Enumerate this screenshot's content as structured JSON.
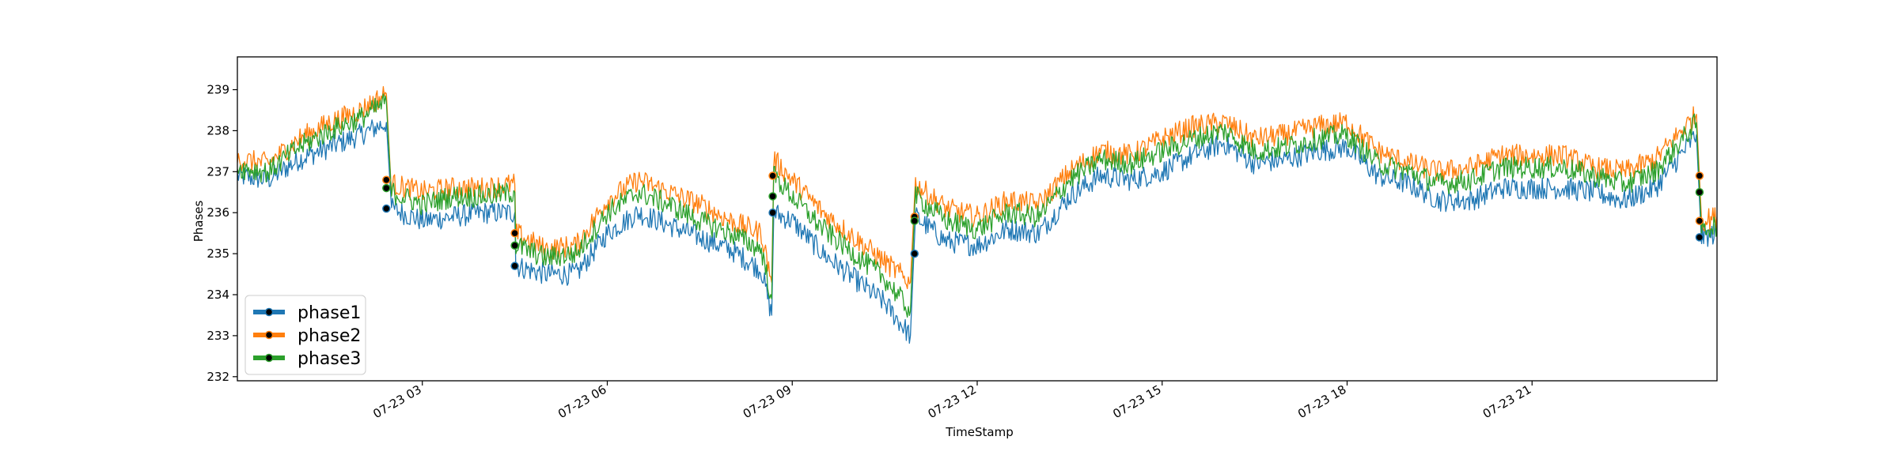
{
  "chart_data": {
    "type": "line",
    "title": "",
    "xlabel": "TimeStamp",
    "ylabel": "Phases",
    "x_range": [
      "07-23 00:00",
      "07-24 00:00"
    ],
    "ylim": [
      231.9,
      239.8
    ],
    "grid": false,
    "legend_position": "lower-left",
    "x_ticks": [
      {
        "t": 3,
        "label": "07-23 03"
      },
      {
        "t": 6,
        "label": "07-23 06"
      },
      {
        "t": 9,
        "label": "07-23 09"
      },
      {
        "t": 12,
        "label": "07-23 12"
      },
      {
        "t": 15,
        "label": "07-23 15"
      },
      {
        "t": 18,
        "label": "07-23 18"
      },
      {
        "t": 21,
        "label": "07-23 21"
      }
    ],
    "y_ticks": [
      232,
      233,
      234,
      235,
      236,
      237,
      238,
      239
    ],
    "series": [
      {
        "name": "phase1",
        "color": "#1f77b4",
        "x": [
          "07-23 00:00",
          "07-23 00:30",
          "07-23 01:00",
          "07-23 01:30",
          "07-23 02:00",
          "07-23 02:25",
          "07-23 02:30",
          "07-23 03:00",
          "07-23 03:30",
          "07-23 04:00",
          "07-23 04:30",
          "07-23 04:31",
          "07-23 05:00",
          "07-23 05:30",
          "07-23 06:00",
          "07-23 06:30",
          "07-23 07:00",
          "07-23 07:30",
          "07-23 08:00",
          "07-23 08:30",
          "07-23 08:40",
          "07-23 08:42",
          "07-23 09:00",
          "07-23 09:30",
          "07-23 10:00",
          "07-23 10:30",
          "07-23 10:55",
          "07-23 11:00",
          "07-23 11:30",
          "07-23 12:00",
          "07-23 12:30",
          "07-23 13:00",
          "07-23 13:30",
          "07-23 14:00",
          "07-23 14:30",
          "07-23 15:00",
          "07-23 15:30",
          "07-23 16:00",
          "07-23 16:30",
          "07-23 17:00",
          "07-23 17:30",
          "07-23 18:00",
          "07-23 18:30",
          "07-23 19:00",
          "07-23 19:30",
          "07-23 20:00",
          "07-23 20:30",
          "07-23 21:00",
          "07-23 21:30",
          "07-23 22:00",
          "07-23 22:30",
          "07-23 23:00",
          "07-23 23:40",
          "07-23 23:45",
          "07-24 00:00"
        ],
        "values": [
          236.9,
          236.8,
          237.3,
          237.6,
          237.9,
          238.2,
          236.1,
          235.8,
          235.9,
          236.0,
          236.0,
          234.7,
          234.5,
          234.5,
          235.5,
          236.0,
          235.7,
          235.4,
          235.1,
          234.6,
          233.5,
          236.0,
          235.8,
          235.0,
          234.4,
          233.8,
          233.0,
          235.9,
          235.3,
          235.2,
          235.6,
          235.5,
          236.4,
          236.9,
          236.8,
          237.0,
          237.4,
          237.7,
          237.2,
          237.3,
          237.5,
          237.6,
          236.9,
          236.7,
          236.3,
          236.3,
          236.6,
          236.6,
          236.6,
          236.5,
          236.3,
          236.6,
          237.9,
          235.4,
          235.5
        ]
      },
      {
        "name": "phase2",
        "color": "#ff7f0e",
        "x": [
          "07-23 00:00",
          "07-23 00:30",
          "07-23 01:00",
          "07-23 01:30",
          "07-23 02:00",
          "07-23 02:25",
          "07-23 02:30",
          "07-23 03:00",
          "07-23 03:30",
          "07-23 04:00",
          "07-23 04:30",
          "07-23 04:31",
          "07-23 05:00",
          "07-23 05:30",
          "07-23 06:00",
          "07-23 06:30",
          "07-23 07:00",
          "07-23 07:30",
          "07-23 08:00",
          "07-23 08:30",
          "07-23 08:40",
          "07-23 08:42",
          "07-23 09:00",
          "07-23 09:30",
          "07-23 10:00",
          "07-23 10:30",
          "07-23 10:55",
          "07-23 11:00",
          "07-23 11:30",
          "07-23 12:00",
          "07-23 12:30",
          "07-23 13:00",
          "07-23 13:30",
          "07-23 14:00",
          "07-23 14:30",
          "07-23 15:00",
          "07-23 15:30",
          "07-23 16:00",
          "07-23 16:30",
          "07-23 17:00",
          "07-23 17:30",
          "07-23 18:00",
          "07-23 18:30",
          "07-23 19:00",
          "07-23 19:30",
          "07-23 20:00",
          "07-23 20:30",
          "07-23 21:00",
          "07-23 21:30",
          "07-23 22:00",
          "07-23 22:30",
          "07-23 23:00",
          "07-23 23:40",
          "07-23 23:45",
          "07-24 00:00"
        ],
        "values": [
          237.3,
          237.2,
          237.8,
          238.2,
          238.5,
          238.9,
          236.7,
          236.5,
          236.6,
          236.6,
          236.7,
          235.5,
          235.1,
          235.2,
          236.3,
          236.8,
          236.5,
          236.2,
          235.8,
          235.5,
          234.3,
          237.3,
          236.8,
          236.0,
          235.4,
          234.8,
          234.3,
          236.7,
          236.1,
          235.9,
          236.3,
          236.2,
          237.0,
          237.5,
          237.4,
          237.8,
          238.1,
          238.2,
          237.8,
          237.9,
          238.1,
          238.2,
          237.5,
          237.2,
          237.0,
          237.1,
          237.4,
          237.4,
          237.4,
          237.1,
          237.0,
          237.3,
          238.4,
          235.8,
          235.9
        ]
      },
      {
        "name": "phase3",
        "color": "#2ca02c",
        "x": [
          "07-23 00:00",
          "07-23 00:30",
          "07-23 01:00",
          "07-23 01:30",
          "07-23 02:00",
          "07-23 02:25",
          "07-23 02:30",
          "07-23 03:00",
          "07-23 03:30",
          "07-23 04:00",
          "07-23 04:30",
          "07-23 04:31",
          "07-23 05:00",
          "07-23 05:30",
          "07-23 06:00",
          "07-23 06:30",
          "07-23 07:00",
          "07-23 07:30",
          "07-23 08:00",
          "07-23 08:30",
          "07-23 08:40",
          "07-23 08:42",
          "07-23 09:00",
          "07-23 09:30",
          "07-23 10:00",
          "07-23 10:30",
          "07-23 10:55",
          "07-23 11:00",
          "07-23 11:30",
          "07-23 12:00",
          "07-23 12:30",
          "07-23 13:00",
          "07-23 13:30",
          "07-23 14:00",
          "07-23 14:30",
          "07-23 15:00",
          "07-23 15:30",
          "07-23 16:00",
          "07-23 16:30",
          "07-23 17:00",
          "07-23 17:30",
          "07-23 18:00",
          "07-23 18:30",
          "07-23 19:00",
          "07-23 19:30",
          "07-23 20:00",
          "07-23 20:30",
          "07-23 21:00",
          "07-23 21:30",
          "07-23 22:00",
          "07-23 22:30",
          "07-23 23:00",
          "07-23 23:40",
          "07-23 23:45",
          "07-24 00:00"
        ],
        "values": [
          237.1,
          237.0,
          237.6,
          238.0,
          238.3,
          238.7,
          236.5,
          236.2,
          236.4,
          236.4,
          236.5,
          235.2,
          234.9,
          235.0,
          236.0,
          236.5,
          236.2,
          235.8,
          235.5,
          235.1,
          233.9,
          236.9,
          236.4,
          235.6,
          235.0,
          234.4,
          233.6,
          236.4,
          235.8,
          235.6,
          236.0,
          235.9,
          236.8,
          237.3,
          237.2,
          237.5,
          237.8,
          238.0,
          237.5,
          237.6,
          237.8,
          237.9,
          237.2,
          237.0,
          236.7,
          236.8,
          237.1,
          237.1,
          237.1,
          236.9,
          236.7,
          237.0,
          238.2,
          235.6,
          235.7
        ]
      }
    ],
    "markers": [
      {
        "series": 0,
        "x": "07-23 02:25",
        "y": 236.1
      },
      {
        "series": 1,
        "x": "07-23 02:25",
        "y": 236.8
      },
      {
        "series": 2,
        "x": "07-23 02:25",
        "y": 236.6
      },
      {
        "series": 0,
        "x": "07-23 04:30",
        "y": 234.7
      },
      {
        "series": 1,
        "x": "07-23 04:30",
        "y": 235.5
      },
      {
        "series": 2,
        "x": "07-23 04:30",
        "y": 235.2
      },
      {
        "series": 0,
        "x": "07-23 08:41",
        "y": 236.0
      },
      {
        "series": 1,
        "x": "07-23 08:41",
        "y": 236.9
      },
      {
        "series": 2,
        "x": "07-23 08:41",
        "y": 236.4
      },
      {
        "series": 0,
        "x": "07-23 10:59",
        "y": 235.0
      },
      {
        "series": 1,
        "x": "07-23 10:59",
        "y": 235.9
      },
      {
        "series": 2,
        "x": "07-23 10:59",
        "y": 235.8
      },
      {
        "series": 0,
        "x": "07-23 23:43",
        "y": 235.4
      },
      {
        "series": 1,
        "x": "07-23 23:43",
        "y": 236.9
      },
      {
        "series": 2,
        "x": "07-23 23:43",
        "y": 236.5
      },
      {
        "series": 1,
        "x": "07-23 23:43",
        "y": 235.8
      }
    ]
  }
}
